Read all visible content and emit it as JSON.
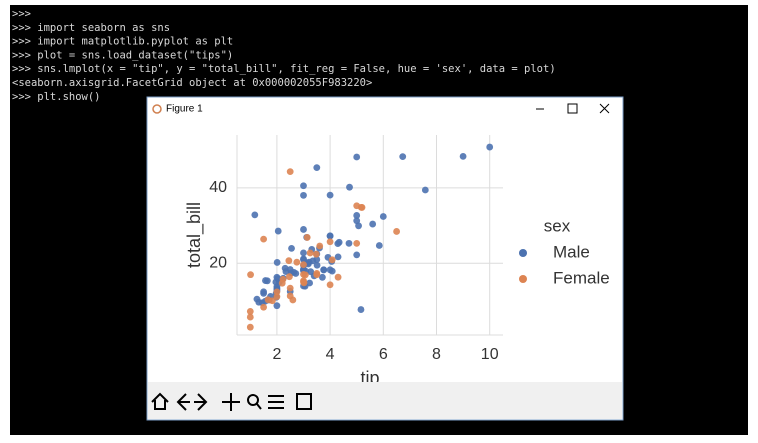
{
  "terminal": {
    "lines": [
      ">>>",
      ">>> import seaborn as sns",
      ">>> import matplotlib.pyplot as plt",
      ">>> plot = sns.load_dataset(\"tips\")",
      ">>> sns.lmplot(x = \"tip\", y = \"total_bill\", fit_reg = False, hue = 'sex', data = plot)",
      "<seaborn.axisgrid.FacetGrid object at 0x000002055F983220>",
      ">>> plt.show()"
    ]
  },
  "window": {
    "title": "Figure 1"
  },
  "chart_data": {
    "type": "scatter",
    "x_label": "tip",
    "y_label": "total_bill",
    "legend_title": "sex",
    "xlim": [
      0.5,
      10.5
    ],
    "ylim": [
      1,
      54
    ],
    "xticks": [
      2,
      4,
      6,
      8,
      10
    ],
    "yticks": [
      20,
      40
    ],
    "grid": true,
    "series": [
      {
        "name": "Male",
        "color": "#4c72b0",
        "x": [
          1.66,
          3.5,
          3.31,
          4.71,
          2,
          3.12,
          1.96,
          3.23,
          1.71,
          1.57,
          3,
          3.92,
          3.71,
          3.35,
          4.08,
          7.58,
          3.18,
          2.34,
          2,
          2,
          4.3,
          1.45,
          2.5,
          3.27,
          3.6,
          2,
          2.31,
          5,
          2.24,
          2.54,
          3.06,
          1.32,
          5.6,
          3,
          5,
          6,
          2.05,
          3,
          2.5,
          1.56,
          4.34,
          3.51,
          3,
          1.76,
          6.73,
          3.21,
          2,
          1.98,
          3.76,
          2.64,
          3.15,
          2.01,
          2.09,
          1.97,
          1.25,
          3.08,
          4,
          3,
          2.71,
          3,
          3.4,
          5,
          2.03,
          2,
          4,
          5.85,
          3,
          3,
          3.5,
          4.73,
          4,
          1.5,
          3,
          1.5,
          1.64,
          4.06,
          4.29,
          3.76,
          3,
          4,
          2.55,
          5.07,
          10,
          9,
          5,
          1.17,
          3.5,
          3,
          5.16
        ],
        "values": [
          10.34,
          21.01,
          23.68,
          25.29,
          8.77,
          26.88,
          15.04,
          14.78,
          10.27,
          15.42,
          18.43,
          21.58,
          16.29,
          20.65,
          17.92,
          39.42,
          19.82,
          17.81,
          13.37,
          12.69,
          21.7,
          9.55,
          18.35,
          17.78,
          24.06,
          16.31,
          18.69,
          31.27,
          16.04,
          17.46,
          13.94,
          9.68,
          30.4,
          18.29,
          22.23,
          32.4,
          28.55,
          18.04,
          12.54,
          9.94,
          25.56,
          19.49,
          38.01,
          11.24,
          48.27,
          20.29,
          13.81,
          11.02,
          18.29,
          17.59,
          20.08,
          20.23,
          15.01,
          12.02,
          10.51,
          17.92,
          27.2,
          22.76,
          17.29,
          19.44,
          16.66,
          32.68,
          15.98,
          13.03,
          18.28,
          24.71,
          21.16,
          28.97,
          22.49,
          40.17,
          27.28,
          12.03,
          21.01,
          12.46,
          15.36,
          20.49,
          25.21,
          18.24,
          14,
          38.07,
          23.95,
          29.93,
          50.81,
          48.33,
          48.17,
          32.83,
          45.35,
          40.55,
          7.74
        ]
      },
      {
        "name": "Female",
        "color": "#dd8452",
        "x": [
          1.01,
          3.61,
          5,
          3.02,
          1.67,
          3.5,
          2.75,
          2.23,
          3,
          3,
          2.45,
          3.07,
          2.6,
          5.2,
          1.5,
          2.47,
          1,
          3,
          3.14,
          5,
          2.2,
          1.83,
          5.17,
          1,
          4.3,
          3.25,
          2.5,
          3,
          2.5,
          3.48,
          4.08,
          4,
          1,
          4,
          3.5,
          2,
          2.5,
          1.5,
          6.5,
          2
        ],
        "values": [
          16.99,
          24.59,
          35.26,
          14.83,
          10.33,
          16.97,
          20.29,
          15.77,
          19.65,
          15.06,
          20.69,
          16.93,
          10.29,
          34.81,
          26.41,
          16.45,
          3.07,
          17.07,
          26.86,
          25.28,
          14.73,
          10.07,
          34.83,
          5.75,
          16.32,
          22.75,
          11.35,
          15.38,
          44.3,
          22.42,
          20.92,
          14.31,
          7.25,
          25.71,
          17.31,
          11.17,
          13.42,
          8.35,
          28.44,
          12.43
        ]
      }
    ]
  }
}
